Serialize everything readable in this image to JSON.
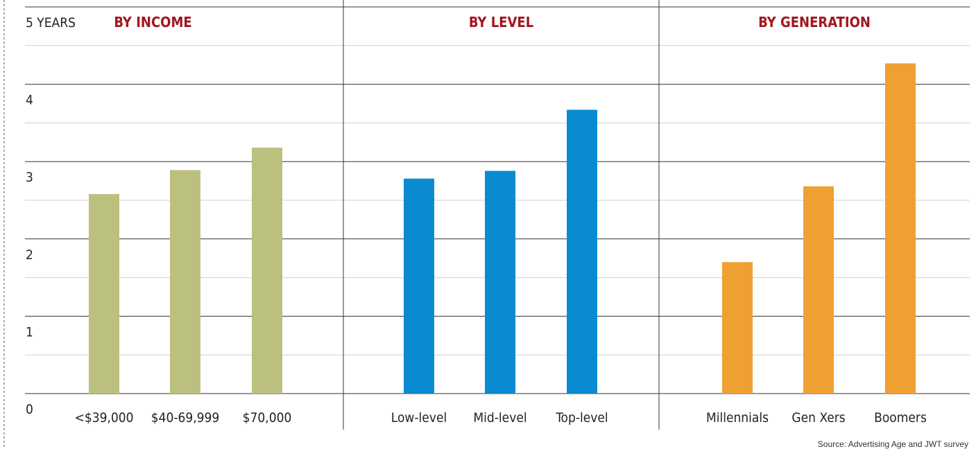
{
  "chart_data": {
    "type": "bar",
    "y_axis": {
      "ticks": [
        0,
        1,
        2,
        3,
        4,
        5
      ],
      "tick_labels": [
        "0",
        "1",
        "2",
        "3",
        "4",
        "5 YEARS"
      ],
      "ylim": [
        0,
        5
      ],
      "minor_gridlines": true
    },
    "panels": [
      {
        "title": "BY INCOME",
        "color": "#bcc07f",
        "categories": [
          "<$39,000",
          "$40-69,999",
          "$70,000"
        ],
        "values": [
          2.58,
          2.89,
          3.18
        ]
      },
      {
        "title": "BY LEVEL",
        "color": "#0a8bd1",
        "categories": [
          "Low-level",
          "Mid-level",
          "Top-level"
        ],
        "values": [
          2.78,
          2.88,
          3.67
        ]
      },
      {
        "title": "BY GENERATION",
        "color": "#efa033",
        "categories": [
          "Millennials",
          "Gen Xers",
          "Boomers"
        ],
        "values": [
          1.7,
          2.68,
          4.27
        ]
      }
    ],
    "source": "Source: Advertising Age and JWT survey"
  }
}
